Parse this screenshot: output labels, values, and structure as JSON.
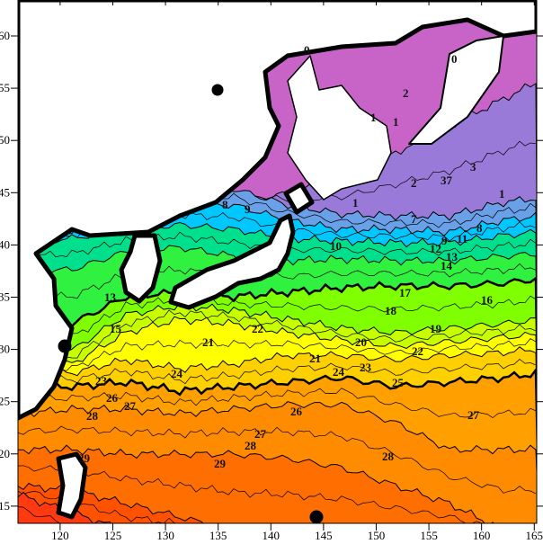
{
  "x_axis": {
    "ticks": [
      "120",
      "125",
      "130",
      "135",
      "140",
      "145",
      "150",
      "155",
      "160",
      "165"
    ],
    "values": [
      120,
      125,
      130,
      135,
      140,
      145,
      150,
      155,
      160,
      165
    ],
    "range": [
      116,
      165.3
    ]
  },
  "y_axis": {
    "ticks": [
      "60",
      "55",
      "50",
      "45",
      "40",
      "35",
      "30",
      "25",
      "20",
      "15"
    ],
    "values": [
      60,
      55,
      50,
      45,
      40,
      35,
      30,
      25,
      20,
      15
    ],
    "range": [
      13.4,
      63.4
    ]
  },
  "palette": [
    "#c864c8",
    "#9a7ad8",
    "#6aa0e8",
    "#00c8ff",
    "#00e08c",
    "#30f040",
    "#80ff00",
    "#c8ff00",
    "#ffff00",
    "#ffd000",
    "#ffa000",
    "#ff8c00",
    "#ff6e00",
    "#ff5200",
    "#ff3a10"
  ],
  "land_color": "#ffffff",
  "coast_color": "#000000",
  "contour_labels": [
    "0",
    "0",
    "2",
    "1",
    "1",
    "3",
    "37",
    "2",
    "1",
    "1",
    "8",
    "9",
    "7",
    "8",
    "10",
    "12",
    "9",
    "13",
    "11",
    "14",
    "13",
    "17",
    "16",
    "15",
    "18",
    "19",
    "20",
    "21",
    "22",
    "22",
    "23",
    "24",
    "25",
    "21",
    "26",
    "27",
    "28",
    "26",
    "27",
    "28",
    "27",
    "28",
    "29",
    "29",
    "23",
    "24"
  ]
}
